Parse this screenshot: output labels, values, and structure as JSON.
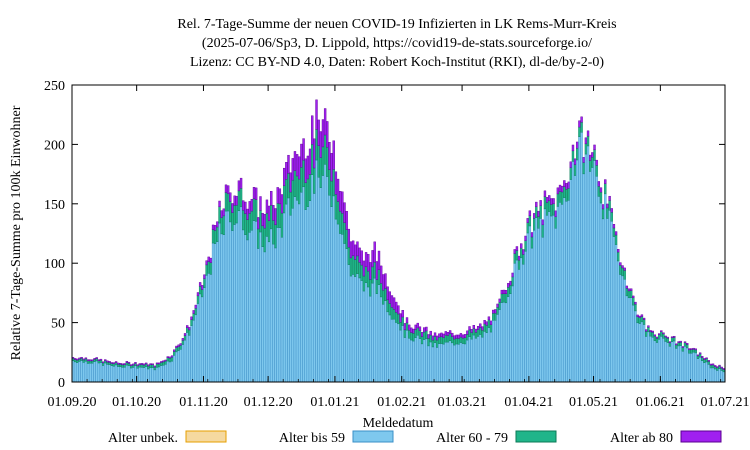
{
  "chart_data": {
    "type": "bar",
    "stacked": true,
    "title_lines": [
      "Rel. 7-Tage-Summe der neuen COVID-19 Infizierten in LK Rems-Murr-Kreis",
      "(2025-07-06/Sp3, D. Lippold, https://covid19-de-stats.sourceforge.io/",
      "Lizenz: CC BY-ND 4.0, Daten: Robert Koch-Institut (RKI), dl-de/by-2-0)"
    ],
    "xlabel": "Meldedatum",
    "ylabel": "Relative 7-Tage-Summe pro 100k Einwohner",
    "ylim": [
      0,
      250
    ],
    "x_start": "2020-09-01",
    "x_end": "2021-07-01",
    "bar_interval_days": 1,
    "grid": false,
    "legend_position": "bottom",
    "x_ticks": [
      "01.09.20",
      "01.10.20",
      "01.11.20",
      "01.12.20",
      "01.01.21",
      "01.02.21",
      "01.03.21",
      "01.04.21",
      "01.05.21",
      "01.06.21",
      "01.07.21"
    ],
    "y_ticks": [
      "0",
      "50",
      "100",
      "150",
      "200",
      "250"
    ],
    "series": [
      {
        "name": "Alter unbek.",
        "color": "#f5d9a0",
        "stroke": "#e69f00",
        "anchors": [
          [
            "2020-09-01",
            0
          ],
          [
            "2021-07-01",
            0
          ]
        ]
      },
      {
        "name": "Alter bis 59",
        "color": "#7ec8ee",
        "stroke": "#3a8fc7",
        "anchors": [
          [
            "2020-09-01",
            18
          ],
          [
            "2020-09-10",
            17
          ],
          [
            "2020-09-22",
            13
          ],
          [
            "2020-10-01",
            13
          ],
          [
            "2020-10-10",
            11
          ],
          [
            "2020-10-18",
            20
          ],
          [
            "2020-10-25",
            40
          ],
          [
            "2020-11-01",
            75
          ],
          [
            "2020-11-06",
            110
          ],
          [
            "2020-11-10",
            130
          ],
          [
            "2020-11-15",
            140
          ],
          [
            "2020-11-20",
            135
          ],
          [
            "2020-11-25",
            125
          ],
          [
            "2020-12-01",
            115
          ],
          [
            "2020-12-06",
            125
          ],
          [
            "2020-12-12",
            150
          ],
          [
            "2020-12-18",
            160
          ],
          [
            "2020-12-22",
            170
          ],
          [
            "2020-12-26",
            170
          ],
          [
            "2020-12-30",
            165
          ],
          [
            "2021-01-03",
            140
          ],
          [
            "2021-01-08",
            95
          ],
          [
            "2021-01-14",
            80
          ],
          [
            "2021-01-20",
            80
          ],
          [
            "2021-01-27",
            60
          ],
          [
            "2021-02-03",
            40
          ],
          [
            "2021-02-10",
            35
          ],
          [
            "2021-02-17",
            30
          ],
          [
            "2021-02-24",
            33
          ],
          [
            "2021-03-03",
            35
          ],
          [
            "2021-03-10",
            38
          ],
          [
            "2021-03-17",
            50
          ],
          [
            "2021-03-22",
            75
          ],
          [
            "2021-03-28",
            105
          ],
          [
            "2021-04-03",
            125
          ],
          [
            "2021-04-09",
            135
          ],
          [
            "2021-04-14",
            140
          ],
          [
            "2021-04-18",
            155
          ],
          [
            "2021-04-22",
            185
          ],
          [
            "2021-04-27",
            195
          ],
          [
            "2021-05-02",
            175
          ],
          [
            "2021-05-08",
            135
          ],
          [
            "2021-05-14",
            95
          ],
          [
            "2021-05-20",
            60
          ],
          [
            "2021-05-26",
            40
          ],
          [
            "2021-06-02",
            35
          ],
          [
            "2021-06-10",
            30
          ],
          [
            "2021-06-18",
            22
          ],
          [
            "2021-06-25",
            12
          ],
          [
            "2021-07-01",
            9
          ]
        ]
      },
      {
        "name": "Alter 60 - 79",
        "color": "#20b58a",
        "stroke": "#0b7a57",
        "anchors": [
          [
            "2020-09-01",
            2
          ],
          [
            "2020-09-22",
            2
          ],
          [
            "2020-10-01",
            2
          ],
          [
            "2020-10-15",
            3
          ],
          [
            "2020-10-25",
            4
          ],
          [
            "2020-11-01",
            7
          ],
          [
            "2020-11-10",
            15
          ],
          [
            "2020-11-18",
            17
          ],
          [
            "2020-11-25",
            17
          ],
          [
            "2020-12-01",
            19
          ],
          [
            "2020-12-08",
            21
          ],
          [
            "2020-12-15",
            22
          ],
          [
            "2020-12-20",
            23
          ],
          [
            "2020-12-26",
            25
          ],
          [
            "2021-01-01",
            22
          ],
          [
            "2021-01-08",
            15
          ],
          [
            "2021-01-15",
            14
          ],
          [
            "2021-01-22",
            12
          ],
          [
            "2021-02-01",
            7
          ],
          [
            "2021-02-15",
            6
          ],
          [
            "2021-03-01",
            5
          ],
          [
            "2021-03-15",
            6
          ],
          [
            "2021-03-25",
            8
          ],
          [
            "2021-04-05",
            10
          ],
          [
            "2021-04-15",
            10
          ],
          [
            "2021-04-25",
            9
          ],
          [
            "2021-05-05",
            9
          ],
          [
            "2021-05-15",
            7
          ],
          [
            "2021-05-25",
            4
          ],
          [
            "2021-06-10",
            3
          ],
          [
            "2021-07-01",
            2
          ]
        ]
      },
      {
        "name": "Alter ab 80",
        "color": "#a020f0",
        "stroke": "#5a0090",
        "anchors": [
          [
            "2020-09-01",
            1
          ],
          [
            "2020-09-22",
            1
          ],
          [
            "2020-10-15",
            1
          ],
          [
            "2020-10-25",
            2
          ],
          [
            "2020-11-05",
            4
          ],
          [
            "2020-11-15",
            8
          ],
          [
            "2020-11-25",
            10
          ],
          [
            "2020-12-05",
            13
          ],
          [
            "2020-12-12",
            17
          ],
          [
            "2020-12-18",
            20
          ],
          [
            "2020-12-24",
            24
          ],
          [
            "2020-12-30",
            24
          ],
          [
            "2021-01-06",
            15
          ],
          [
            "2021-01-13",
            12
          ],
          [
            "2021-01-20",
            16
          ],
          [
            "2021-01-27",
            10
          ],
          [
            "2021-02-05",
            4
          ],
          [
            "2021-02-20",
            3
          ],
          [
            "2021-03-05",
            3
          ],
          [
            "2021-03-20",
            3
          ],
          [
            "2021-04-01",
            4
          ],
          [
            "2021-04-15",
            5
          ],
          [
            "2021-04-25",
            5
          ],
          [
            "2021-05-05",
            4
          ],
          [
            "2021-05-15",
            2
          ],
          [
            "2021-06-01",
            1
          ],
          [
            "2021-07-01",
            1
          ]
        ]
      }
    ]
  }
}
